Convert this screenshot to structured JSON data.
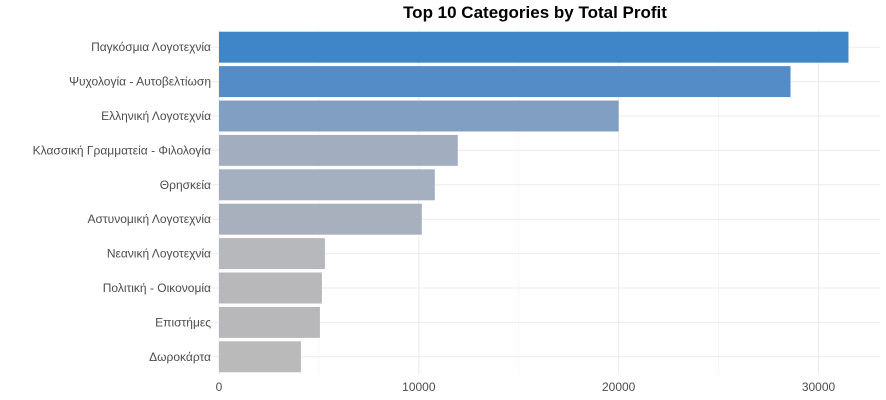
{
  "chart_data": {
    "type": "bar",
    "orientation": "horizontal",
    "title": "Top 10 Categories by Total Profit",
    "xlabel": "",
    "ylabel": "",
    "categories": [
      "Παγκόσμια Λογοτεχνία",
      "Ψυχολογία - Αυτοβελτίωση",
      "Ελληνική Λογοτεχνία",
      "Κλασσική Γραμματεία - Φιλολογία",
      "Θρησκεία",
      "Αστυνομική Λογοτεχνία",
      "Νεανική Λογοτεχνία",
      "Πολιτική - Οικονομία",
      "Επιστήμες",
      "Δωροκάρτα"
    ],
    "values": [
      31500,
      28600,
      20000,
      11950,
      10800,
      10150,
      5300,
      5150,
      5050,
      4100
    ],
    "colors": [
      "#3f86c8",
      "#538cc6",
      "#809fc3",
      "#a2aec0",
      "#a4afbf",
      "#a8b0be",
      "#b7b8bb",
      "#b8b8ba",
      "#b8b8ba",
      "#bababa"
    ],
    "xlim": [
      0,
      33000
    ],
    "xticks": [
      0,
      10000,
      20000,
      30000
    ],
    "xtick_labels": [
      "0",
      "10000",
      "20000",
      "30000"
    ],
    "grid": true,
    "legend": "none"
  }
}
